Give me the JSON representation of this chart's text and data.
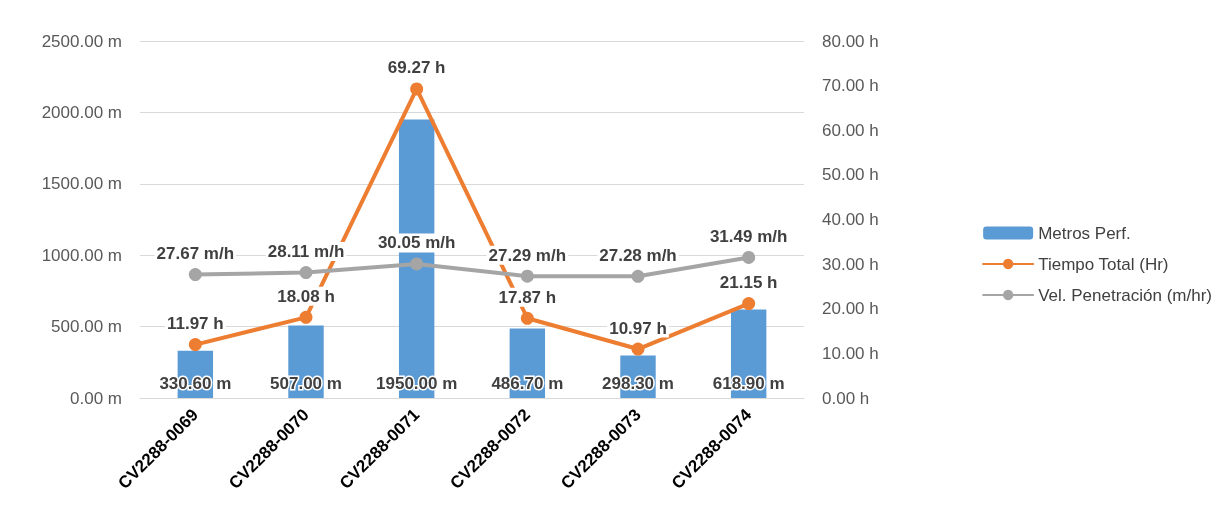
{
  "chart_data": {
    "type": "bar",
    "categories": [
      "CV2288-0069",
      "CV2288-0070",
      "CV2288-0071",
      "CV2288-0072",
      "CV2288-0073",
      "CV2288-0074"
    ],
    "series": [
      {
        "name": "Metros Perf.",
        "color": "#5b9bd5",
        "values": [
          330.6,
          507.0,
          1950.0,
          486.7,
          298.3,
          618.9
        ],
        "value_labels": [
          "330.60 m",
          "507.00 m",
          "1950.00 m",
          "486.70 m",
          "298.30 m",
          "618.90 m"
        ]
      },
      {
        "name": "Tiempo Total (Hr)",
        "type": "line",
        "axis": "y2",
        "color": "#ed7d31",
        "values": [
          11.97,
          18.08,
          69.27,
          17.87,
          10.97,
          21.15
        ],
        "value_labels": [
          "11.97 h",
          "18.08 h",
          "69.27 h",
          "17.87 h",
          "10.97 h",
          "21.15 h"
        ]
      },
      {
        "name": "Vel. Penetración (m/hr)",
        "type": "line",
        "axis": "y2",
        "color": "#a5a5a5",
        "values": [
          27.67,
          28.11,
          30.05,
          27.29,
          27.28,
          31.49
        ],
        "value_labels": [
          "27.67 m/h",
          "28.11 m/h",
          "30.05 m/h",
          "27.29 m/h",
          "27.28 m/h",
          "31.49 m/h"
        ]
      }
    ],
    "ylim": [
      0,
      2500
    ],
    "yticks": [
      {
        "value": 0,
        "label": "0.00 m"
      },
      {
        "value": 500,
        "label": "500.00 m"
      },
      {
        "value": 1000,
        "label": "1000.00 m"
      },
      {
        "value": 1500,
        "label": "1500.00 m"
      },
      {
        "value": 2000,
        "label": "2000.00 m"
      },
      {
        "value": 2500,
        "label": "2500.00 m"
      }
    ],
    "y2lim": [
      0,
      80
    ],
    "y2ticks": [
      {
        "value": 0,
        "label": "0.00 h"
      },
      {
        "value": 10,
        "label": "10.00 h"
      },
      {
        "value": 20,
        "label": "20.00 h"
      },
      {
        "value": 30,
        "label": "30.00 h"
      },
      {
        "value": 40,
        "label": "40.00 h"
      },
      {
        "value": 50,
        "label": "50.00 h"
      },
      {
        "value": 60,
        "label": "60.00 h"
      },
      {
        "value": 70,
        "label": "70.00 h"
      },
      {
        "value": 80,
        "label": "80.00 h"
      }
    ],
    "grid": "y",
    "legend": "right",
    "marker": "circle",
    "line_style": "solid"
  }
}
